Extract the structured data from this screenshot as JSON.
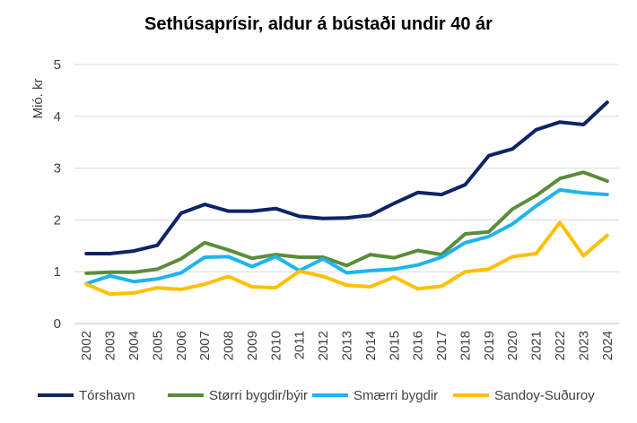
{
  "chart_data": {
    "type": "line",
    "title": "Sethúsaprísir, aldur á bústaði undir 40 ár",
    "ylabel": "Mió. kr",
    "xlabel": "",
    "ylim": [
      0,
      5
    ],
    "yticks": [
      "0",
      "1",
      "2",
      "3",
      "4",
      "5"
    ],
    "grid": true,
    "legend_position": "bottom",
    "x": [
      "2002",
      "2003",
      "2004",
      "2005",
      "2006",
      "2007",
      "2008",
      "2009",
      "2010",
      "2011",
      "2012",
      "2013",
      "2014",
      "2015",
      "2016",
      "2017",
      "2018",
      "2019",
      "2020",
      "2021",
      "2022",
      "2023",
      "2024"
    ],
    "series": [
      {
        "name": "Tórshavn",
        "color": "#0d2466",
        "values": [
          1.35,
          1.35,
          1.4,
          1.51,
          2.13,
          2.3,
          2.17,
          2.17,
          2.22,
          2.07,
          2.03,
          2.04,
          2.09,
          2.32,
          2.53,
          2.49,
          2.68,
          3.24,
          3.37,
          3.74,
          3.89,
          3.84,
          4.27
        ]
      },
      {
        "name": "Størri bygdir/býir",
        "color": "#5b8c3a",
        "values": [
          0.97,
          0.99,
          0.99,
          1.05,
          1.25,
          1.56,
          1.42,
          1.26,
          1.33,
          1.28,
          1.28,
          1.12,
          1.33,
          1.27,
          1.41,
          1.33,
          1.73,
          1.77,
          2.21,
          2.47,
          2.8,
          2.92,
          2.75
        ]
      },
      {
        "name": "Smærri bygdir",
        "color": "#1eb4f0",
        "values": [
          0.77,
          0.92,
          0.81,
          0.86,
          0.98,
          1.28,
          1.29,
          1.1,
          1.29,
          1.02,
          1.25,
          0.98,
          1.02,
          1.05,
          1.13,
          1.28,
          1.56,
          1.68,
          1.92,
          2.27,
          2.58,
          2.52,
          2.49
        ]
      },
      {
        "name": "Sandoy-Suðuroy",
        "color": "#ffc000",
        "values": [
          0.76,
          0.57,
          0.59,
          0.69,
          0.66,
          0.76,
          0.91,
          0.71,
          0.69,
          1.01,
          0.91,
          0.74,
          0.71,
          0.9,
          0.67,
          0.72,
          1.0,
          1.05,
          1.29,
          1.35,
          1.95,
          1.31,
          1.7
        ]
      }
    ]
  }
}
